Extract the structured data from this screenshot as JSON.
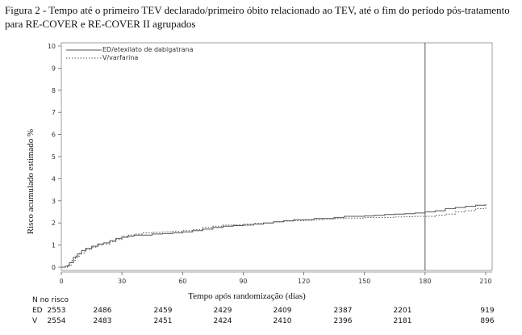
{
  "figure": {
    "caption": "Figura 2 - Tempo até o primeiro TEV declarado/primeiro óbito relacionado ao TEV, até o fim do período pós-tratamento para RE-COVER e RE-COVER II agrupados"
  },
  "chart_data": {
    "type": "line",
    "title": "",
    "xlabel": "Tempo após randomização (dias)",
    "ylabel": "Risco acumulado estimado %",
    "xlim": [
      0,
      210
    ],
    "ylim": [
      0,
      10
    ],
    "x_ticks": [
      "0",
      "30",
      "60",
      "90",
      "120",
      "150",
      "180",
      "210"
    ],
    "y_ticks": [
      "0",
      "1",
      "2",
      "3",
      "4",
      "5",
      "6",
      "7",
      "8",
      "9",
      "10"
    ],
    "reference_line_x": 180,
    "legend_position": "top-left",
    "series": [
      {
        "name": "ED/etexilato de dabigatrana",
        "style": "solid",
        "color": "#555555",
        "points": [
          [
            0,
            0
          ],
          [
            2,
            0.05
          ],
          [
            4,
            0.2
          ],
          [
            6,
            0.45
          ],
          [
            8,
            0.6
          ],
          [
            10,
            0.75
          ],
          [
            12,
            0.85
          ],
          [
            15,
            0.95
          ],
          [
            18,
            1.05
          ],
          [
            21,
            1.1
          ],
          [
            24,
            1.2
          ],
          [
            27,
            1.3
          ],
          [
            30,
            1.35
          ],
          [
            33,
            1.4
          ],
          [
            36,
            1.45
          ],
          [
            40,
            1.45
          ],
          [
            45,
            1.5
          ],
          [
            50,
            1.52
          ],
          [
            55,
            1.55
          ],
          [
            60,
            1.6
          ],
          [
            65,
            1.65
          ],
          [
            70,
            1.72
          ],
          [
            75,
            1.8
          ],
          [
            80,
            1.85
          ],
          [
            85,
            1.88
          ],
          [
            90,
            1.9
          ],
          [
            95,
            1.95
          ],
          [
            100,
            2.0
          ],
          [
            105,
            2.05
          ],
          [
            110,
            2.1
          ],
          [
            115,
            2.15
          ],
          [
            120,
            2.15
          ],
          [
            125,
            2.2
          ],
          [
            130,
            2.2
          ],
          [
            135,
            2.25
          ],
          [
            140,
            2.3
          ],
          [
            145,
            2.3
          ],
          [
            150,
            2.32
          ],
          [
            155,
            2.35
          ],
          [
            160,
            2.38
          ],
          [
            165,
            2.4
          ],
          [
            170,
            2.42
          ],
          [
            175,
            2.45
          ],
          [
            180,
            2.5
          ],
          [
            185,
            2.55
          ],
          [
            190,
            2.65
          ],
          [
            195,
            2.7
          ],
          [
            200,
            2.75
          ],
          [
            205,
            2.8
          ],
          [
            210,
            2.85
          ]
        ]
      },
      {
        "name": "V/varfarina",
        "style": "dotted",
        "color": "#555555",
        "points": [
          [
            0,
            0
          ],
          [
            3,
            0.1
          ],
          [
            5,
            0.3
          ],
          [
            7,
            0.5
          ],
          [
            9,
            0.65
          ],
          [
            12,
            0.8
          ],
          [
            15,
            0.9
          ],
          [
            18,
            1.0
          ],
          [
            21,
            1.05
          ],
          [
            24,
            1.15
          ],
          [
            27,
            1.25
          ],
          [
            30,
            1.4
          ],
          [
            33,
            1.45
          ],
          [
            36,
            1.5
          ],
          [
            40,
            1.55
          ],
          [
            45,
            1.58
          ],
          [
            50,
            1.6
          ],
          [
            55,
            1.62
          ],
          [
            60,
            1.65
          ],
          [
            65,
            1.7
          ],
          [
            70,
            1.8
          ],
          [
            75,
            1.85
          ],
          [
            80,
            1.9
          ],
          [
            85,
            1.92
          ],
          [
            90,
            1.95
          ],
          [
            95,
            1.98
          ],
          [
            100,
            2.0
          ],
          [
            105,
            2.05
          ],
          [
            110,
            2.08
          ],
          [
            115,
            2.1
          ],
          [
            120,
            2.12
          ],
          [
            125,
            2.15
          ],
          [
            130,
            2.18
          ],
          [
            135,
            2.2
          ],
          [
            140,
            2.22
          ],
          [
            145,
            2.22
          ],
          [
            150,
            2.25
          ],
          [
            155,
            2.25
          ],
          [
            160,
            2.25
          ],
          [
            165,
            2.27
          ],
          [
            170,
            2.28
          ],
          [
            175,
            2.3
          ],
          [
            180,
            2.3
          ],
          [
            185,
            2.35
          ],
          [
            190,
            2.4
          ],
          [
            195,
            2.5
          ],
          [
            200,
            2.55
          ],
          [
            205,
            2.65
          ],
          [
            210,
            2.75
          ]
        ]
      }
    ],
    "risk_table": {
      "title": "N no risco",
      "rows": [
        {
          "label": "ED",
          "values": [
            "2553",
            "2486",
            "2459",
            "2429",
            "2409",
            "2387",
            "2201",
            "919"
          ]
        },
        {
          "label": "V",
          "values": [
            "2554",
            "2483",
            "2451",
            "2424",
            "2410",
            "2396",
            "2181",
            "896"
          ]
        }
      ]
    }
  }
}
